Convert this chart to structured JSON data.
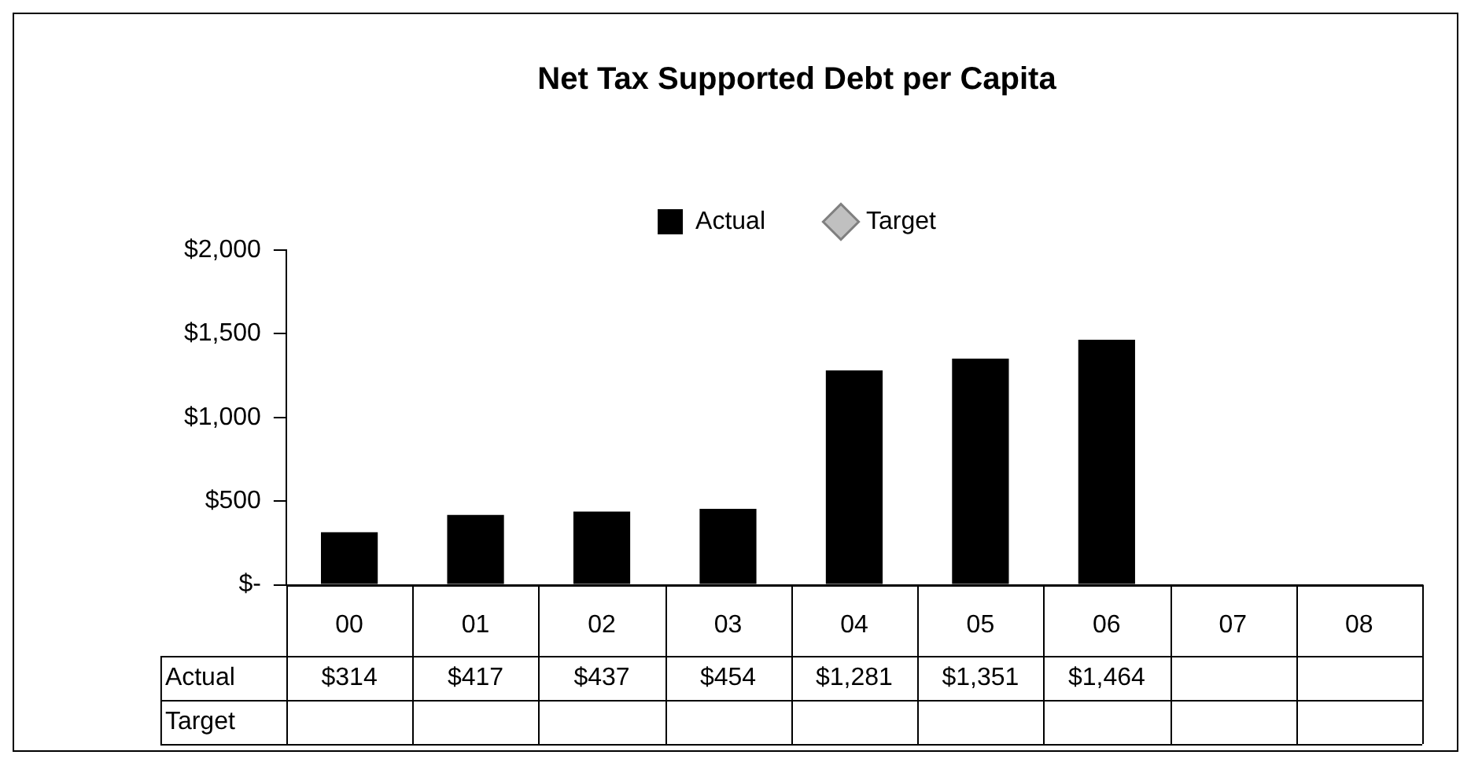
{
  "chart_data": {
    "type": "bar",
    "title": "Net Tax Supported Debt per Capita",
    "categories": [
      "00",
      "01",
      "02",
      "03",
      "04",
      "05",
      "06",
      "07",
      "08"
    ],
    "series": [
      {
        "name": "Actual",
        "color": "#000000",
        "values": [
          314,
          417,
          437,
          454,
          1281,
          1351,
          1464,
          null,
          null
        ],
        "value_labels": [
          "$314",
          "$417",
          "$437",
          "$454",
          "$1,281",
          "$1,351",
          "$1,464",
          null,
          null
        ]
      },
      {
        "name": "Target",
        "type": "line",
        "color": "#808080",
        "marker": "diamond",
        "values": [
          null,
          null,
          null,
          null,
          null,
          null,
          null,
          null,
          null
        ]
      }
    ],
    "ylim": [
      0,
      2000
    ],
    "yticks": [
      {
        "value": 0,
        "label": "$-"
      },
      {
        "value": 500,
        "label": "$500"
      },
      {
        "value": 1000,
        "label": "$1,000"
      },
      {
        "value": 1500,
        "label": "$1,500"
      },
      {
        "value": 2000,
        "label": "$2,000"
      }
    ],
    "grid": false,
    "legend": "top"
  }
}
